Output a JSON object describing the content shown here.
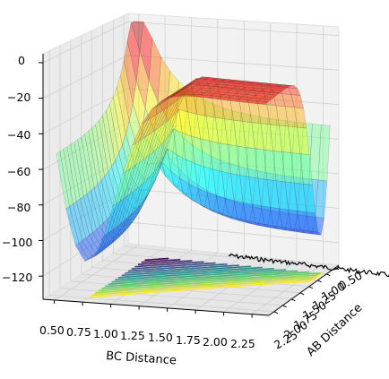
{
  "chart_data": {
    "type": "surface",
    "title": "",
    "xlabel": "BC Distance",
    "ylabel": "AB Distance",
    "zlabel": "",
    "x_ticks": [
      "0.50",
      "0.75",
      "1.00",
      "1.25",
      "1.50",
      "1.75",
      "2.00",
      "2.25"
    ],
    "y_ticks": [
      "0.50",
      "1.00",
      "1.25",
      "1.50",
      "1.75",
      "2.00",
      "2.25"
    ],
    "z_ticks": [
      "0",
      "−20",
      "−40",
      "−60",
      "−80",
      "−100",
      "−120"
    ],
    "z_values": [
      0,
      -20,
      -40,
      -60,
      -80,
      -100,
      -120
    ],
    "xlim": [
      0.4,
      2.4
    ],
    "ylim": [
      0.4,
      2.4
    ],
    "zlim": [
      -133,
      5
    ],
    "colormap": "jet",
    "contour_colormap": "viridis",
    "surface": {
      "description_points": [
        {
          "bc": 0.5,
          "ab": 0.5,
          "energy": 0
        },
        {
          "bc": 0.75,
          "ab": 2.25,
          "energy": -60
        },
        {
          "bc": 0.75,
          "ab": 0.75,
          "energy": -85
        },
        {
          "bc": 1.0,
          "ab": 1.0,
          "energy": -100
        },
        {
          "bc": 2.25,
          "ab": 0.75,
          "energy": -120
        }
      ]
    },
    "grid": true
  }
}
